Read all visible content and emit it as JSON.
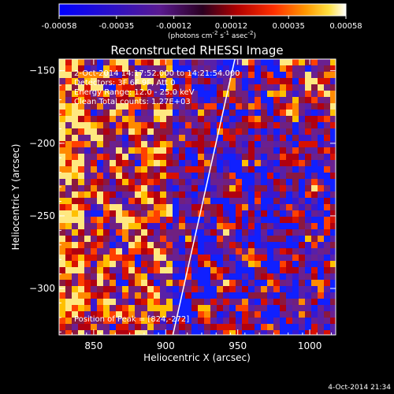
{
  "colorbar": {
    "ticks": [
      "-0.00058",
      "-0.00035",
      "-0.00012",
      "0.00012",
      "0.00035",
      "0.00058"
    ],
    "unit_label_html": "(photons cm<tspan baseline-shift='super' font-size='7'>-2</tspan> s<tspan baseline-shift='super' font-size='7'>-1</tspan> asec<tspan baseline-shift='super' font-size='7'>-2</tspan>)"
  },
  "chart_data": {
    "type": "heatmap",
    "title": "Reconstructed RHESSI Image",
    "xlabel": "Heliocentric X (arcsec)",
    "ylabel": "Heliocentric Y (arcsec)",
    "xlim": [
      826,
      1018
    ],
    "ylim": [
      -332,
      -142
    ],
    "xticks": [
      850,
      900,
      950,
      1000
    ],
    "yticks": [
      -150,
      -200,
      -250,
      -300
    ],
    "x_tick_labels": [
      "850",
      "900",
      "950",
      "1000"
    ],
    "y_tick_labels": [
      "−150",
      "−200",
      "−250",
      "−300"
    ],
    "colorbar_range": [
      -0.00058,
      0.00058
    ],
    "limb_line": [
      [
        905,
        -332
      ],
      [
        948,
        -142
      ]
    ],
    "info_lines": [
      "2-Oct-2014 14:17:52.000 to 14:21:54.000",
      "Detectors: 3F 6F 9F, Att 0",
      "Energy Range: 12.0 - 25.0 keV",
      "Clean    Total counts: 1.27E+03"
    ],
    "peak_text": "Position of Peak = [824,-272]"
  },
  "timestamp": "4-Oct-2014 21:34"
}
